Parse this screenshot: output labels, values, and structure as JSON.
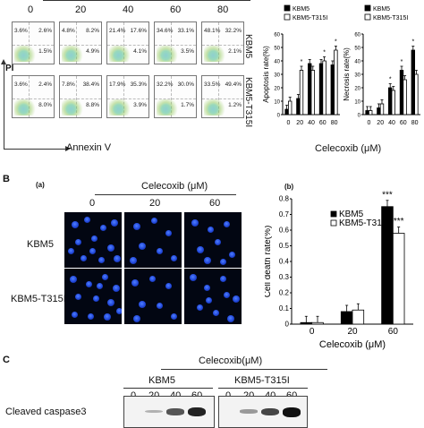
{
  "panel_a": {
    "concentrations": [
      "0",
      "20",
      "40",
      "60",
      "80"
    ],
    "row_labels": [
      "KBM5",
      "KBM5-T315I"
    ],
    "y_axis_label": "PI",
    "x_axis_label": "Annexin V",
    "flow_rows": [
      [
        {
          "ul": "3.6%",
          "ur": "2.6%",
          "lr": "1.5%"
        },
        {
          "ul": "4.8%",
          "ur": "8.2%",
          "lr": "4.9%"
        },
        {
          "ul": "21.4%",
          "ur": "17.6%",
          "lr": "4.1%"
        },
        {
          "ul": "34.6%",
          "ur": "33.1%",
          "lr": "3.5%"
        },
        {
          "ul": "48.1%",
          "ur": "32.2%",
          "lr": "2.1%"
        }
      ],
      [
        {
          "ul": "3.6%",
          "ur": "2.4%",
          "lr": "8.0%"
        },
        {
          "ul": "7.8%",
          "ur": "38.4%",
          "lr": "8.8%"
        },
        {
          "ul": "17.9%",
          "ur": "35.3%",
          "lr": "3.9%"
        },
        {
          "ul": "32.2%",
          "ur": "30.0%",
          "lr": "1.7%"
        },
        {
          "ul": "33.5%",
          "ur": "49.4%",
          "lr": "1.2%"
        }
      ]
    ],
    "shared_xlabel": "Celecoxib (μM)"
  },
  "panel_b": {
    "letter": "B",
    "sub_a": "(a)",
    "sub_b": "(b)",
    "treatment": "Celecoxib (μM)",
    "concentrations": [
      "0",
      "20",
      "60"
    ],
    "row_labels": [
      "KBM5",
      "KBM5-T315I"
    ]
  },
  "panel_c": {
    "letter": "C",
    "treatment": "Celecoxib(μM)",
    "groups": [
      "KBM5",
      "KBM5-T315I"
    ],
    "concentrations": [
      "0",
      "20",
      "40",
      "60"
    ],
    "row_label": "Cleaved caspase3",
    "band_intensity_kbm5": [
      0.0,
      0.05,
      0.6,
      0.9
    ],
    "band_intensity_t315i": [
      0.0,
      0.2,
      0.7,
      1.0
    ]
  },
  "chart_data": [
    {
      "type": "bar",
      "ylabel": "Apoptosis rate(%)",
      "xlabel": "Celecoxib (μM)",
      "categories": [
        "0",
        "20",
        "40",
        "60",
        "80"
      ],
      "ylim": [
        0,
        60
      ],
      "yticks": [
        0,
        10,
        20,
        30,
        40,
        50,
        60
      ],
      "series": [
        {
          "name": "KBM5",
          "color": "#000000",
          "values": [
            4,
            12,
            38,
            38,
            37
          ]
        },
        {
          "name": "KBM5-T315I",
          "color": "#ffffff",
          "values": [
            10,
            33,
            33,
            40,
            48
          ]
        }
      ],
      "annotations": [
        "*",
        "*",
        "*"
      ]
    },
    {
      "type": "bar",
      "ylabel": "Necrosis rate(%)",
      "xlabel": "Celecoxib (μM)",
      "categories": [
        "0",
        "20",
        "40",
        "60",
        "80"
      ],
      "ylim": [
        0,
        60
      ],
      "yticks": [
        0,
        10,
        20,
        30,
        40,
        50,
        60
      ],
      "series": [
        {
          "name": "KBM5",
          "color": "#000000",
          "values": [
            3,
            5,
            20,
            33,
            48
          ]
        },
        {
          "name": "KBM5-T315I",
          "color": "#ffffff",
          "values": [
            3,
            8,
            18,
            26,
            30
          ]
        }
      ],
      "annotations": [
        "*",
        "*",
        "*"
      ]
    },
    {
      "type": "bar",
      "ylabel": "Cell death rate(%)",
      "xlabel": "Celecoxib (μM)",
      "categories": [
        "0",
        "20",
        "60"
      ],
      "ylim": [
        0,
        0.8
      ],
      "yticks": [
        0,
        0.1,
        0.2,
        0.3,
        0.4,
        0.5,
        0.6,
        0.7,
        0.8
      ],
      "series": [
        {
          "name": "KBM5",
          "color": "#000000",
          "values": [
            0.01,
            0.08,
            0.75
          ]
        },
        {
          "name": "KBM5-T315I",
          "color": "#ffffff",
          "values": [
            0.01,
            0.09,
            0.58
          ]
        }
      ],
      "annotations": [
        "***",
        "***"
      ]
    }
  ]
}
